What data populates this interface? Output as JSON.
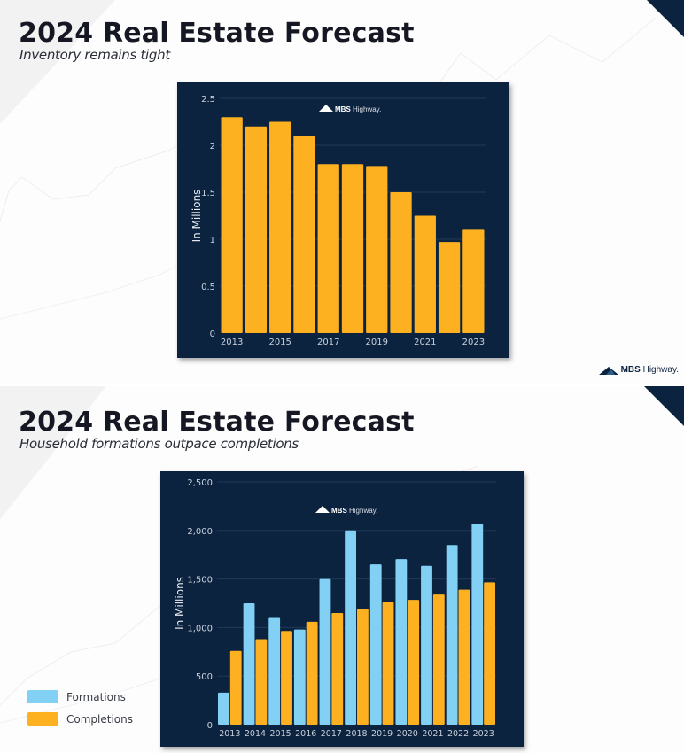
{
  "colors": {
    "navy": "#0c2340",
    "gold": "#fdb120",
    "sky": "#82d0f4",
    "grid": "#1f3957",
    "tick_text": "#c8d0da",
    "axis_label": "#e6eaf0"
  },
  "brand": {
    "logo_bold": "MBS",
    "logo_light": "Highway."
  },
  "slides": [
    {
      "title": "2024 Real Estate Forecast",
      "subtitle": "Inventory remains tight"
    },
    {
      "title": "2024 Real Estate Forecast",
      "subtitle": "Household formations outpace completions"
    }
  ],
  "footer_logo": {
    "bold": "MBS",
    "light": "Highway."
  },
  "chart_data": [
    {
      "type": "bar",
      "title": "",
      "xlabel": "",
      "ylabel": "In Millions",
      "categories": [
        "2013",
        "2014",
        "2015",
        "2016",
        "2017",
        "2018",
        "2019",
        "2020",
        "2021",
        "2022",
        "2023"
      ],
      "x_tick_labels": [
        "2013",
        "",
        "2015",
        "",
        "2017",
        "",
        "2019",
        "",
        "2021",
        "",
        "2023"
      ],
      "values": [
        2.3,
        2.2,
        2.25,
        2.1,
        1.8,
        1.8,
        1.78,
        1.5,
        1.25,
        0.97,
        1.1
      ],
      "ylim": [
        0,
        2.5
      ],
      "y_ticks": [
        0,
        0.5,
        1,
        1.5,
        2,
        2.5
      ],
      "y_tick_labels": [
        "0",
        "0.5",
        "1",
        "1.5",
        "2",
        "2.5"
      ],
      "grid": true,
      "legend": "none"
    },
    {
      "type": "bar",
      "title": "",
      "xlabel": "",
      "ylabel": "In Millions",
      "categories": [
        "2013",
        "2014",
        "2015",
        "2016",
        "2017",
        "2018",
        "2019",
        "2020",
        "2021",
        "2022",
        "2023"
      ],
      "series": [
        {
          "name": "Formations",
          "color": "#82d0f4",
          "values": [
            330,
            1250,
            1100,
            980,
            1500,
            2000,
            1650,
            1705,
            1635,
            1850,
            2070
          ]
        },
        {
          "name": "Completions",
          "color": "#fdb120",
          "values": [
            760,
            880,
            965,
            1060,
            1150,
            1190,
            1260,
            1285,
            1340,
            1390,
            1465
          ]
        }
      ],
      "ylim": [
        0,
        2500
      ],
      "y_ticks": [
        0,
        500,
        1000,
        1500,
        2000,
        2500
      ],
      "y_tick_labels": [
        "0",
        "500",
        "1,000",
        "1,500",
        "2,000",
        "2,500"
      ],
      "grid": true,
      "legend": "left-outside-bottom"
    }
  ]
}
